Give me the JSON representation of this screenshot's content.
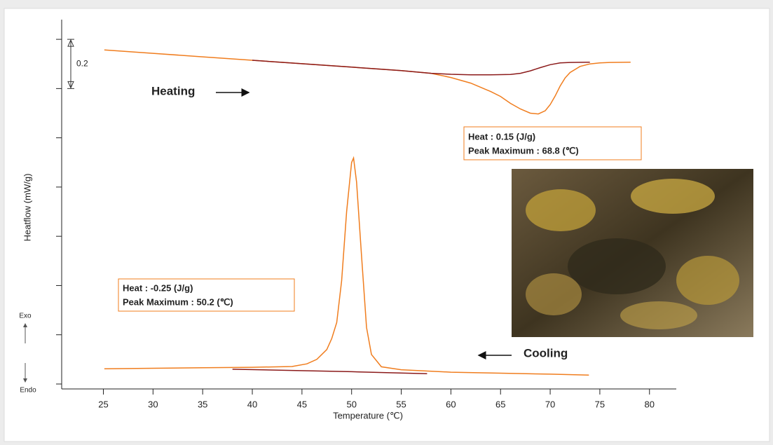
{
  "chart_data": {
    "type": "line",
    "y_label": "Heatflow (mW/g)",
    "x_label": "Temperature (℃)",
    "xlim": [
      20.8,
      82.7
    ],
    "xticks": [
      25,
      30,
      35,
      40,
      45,
      50,
      55,
      60,
      65,
      70,
      75,
      80
    ],
    "ylim": [
      -0.02,
      1.48
    ],
    "yticks": [
      0,
      0.2,
      0.4,
      0.6,
      0.8,
      1.0,
      1.2,
      1.4
    ],
    "scale_bar": 0.2,
    "series": [
      {
        "color": "#f07d1e",
        "x": [
          25.1,
          30,
          35,
          40,
          45,
          50,
          55,
          58,
          60,
          62,
          64,
          65,
          66,
          67,
          68,
          68.8,
          69.5,
          70,
          70.5,
          71,
          71.5,
          72,
          73,
          74,
          75,
          76,
          78.1
        ],
        "values": [
          1.357,
          1.343,
          1.329,
          1.315,
          1.301,
          1.287,
          1.273,
          1.262,
          1.245,
          1.222,
          1.188,
          1.168,
          1.14,
          1.117,
          1.1,
          1.097,
          1.11,
          1.135,
          1.17,
          1.21,
          1.243,
          1.265,
          1.29,
          1.3,
          1.304,
          1.306,
          1.307
        ]
      },
      {
        "color": "#8b1a1a",
        "x": [
          40,
          50,
          55,
          58,
          60,
          62,
          64,
          66,
          67,
          68,
          69,
          70,
          71,
          72,
          74
        ],
        "values": [
          1.315,
          1.287,
          1.273,
          1.262,
          1.258,
          1.256,
          1.256,
          1.257,
          1.262,
          1.272,
          1.285,
          1.297,
          1.304,
          1.306,
          1.307
        ]
      },
      {
        "color": "#f07d1e",
        "x": [
          25.1,
          30,
          35,
          40,
          44,
          45.5,
          46.5,
          47.5,
          48,
          48.5,
          49,
          49.5,
          50,
          50.2,
          50.5,
          51,
          51.5,
          52,
          53,
          55,
          60,
          65,
          70,
          73.9
        ],
        "values": [
          0.062,
          0.064,
          0.066,
          0.068,
          0.071,
          0.082,
          0.1,
          0.14,
          0.185,
          0.25,
          0.42,
          0.7,
          0.9,
          0.918,
          0.82,
          0.52,
          0.23,
          0.12,
          0.07,
          0.058,
          0.048,
          0.044,
          0.04,
          0.036
        ]
      },
      {
        "color": "#8b1a1a",
        "x": [
          38,
          44,
          50,
          57.6
        ],
        "values": [
          0.06,
          0.055,
          0.05,
          0.042
        ]
      }
    ],
    "annotations": [
      {
        "lines": [
          "Heat :  0.15 (J/g)",
          "Peak Maximum :  68.8 (℃)"
        ]
      },
      {
        "lines": [
          "Heat :  -0.25 (J/g)",
          "Peak Maximum :  50.2 (℃)"
        ]
      }
    ],
    "direction_labels": [
      "Heating",
      "Cooling"
    ],
    "exo_label": "Exo",
    "endo_label": "Endo"
  }
}
